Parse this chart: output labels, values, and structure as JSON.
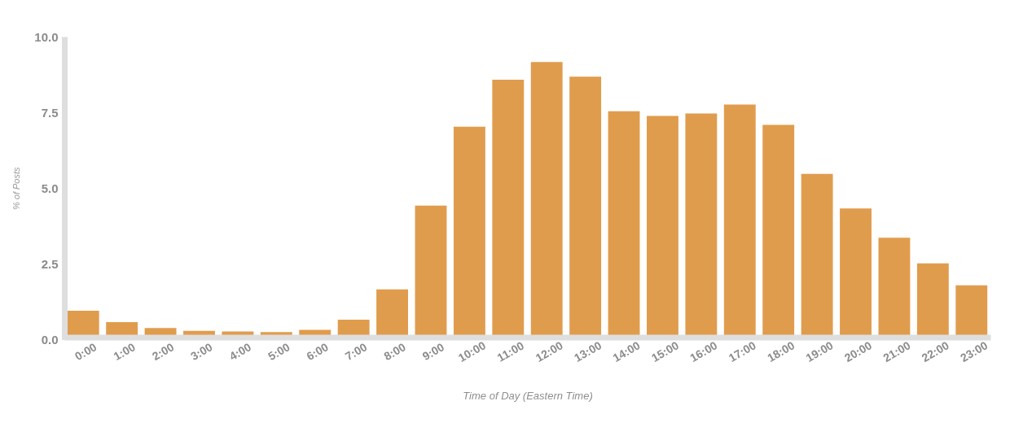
{
  "chart_data": {
    "type": "bar",
    "xlabel": "Time of Day (Eastern Time)",
    "ylabel": "% of Posts",
    "categories": [
      "0:00",
      "1:00",
      "2:00",
      "3:00",
      "4:00",
      "5:00",
      "6:00",
      "7:00",
      "8:00",
      "9:00",
      "10:00",
      "11:00",
      "12:00",
      "13:00",
      "14:00",
      "15:00",
      "16:00",
      "17:00",
      "18:00",
      "19:00",
      "20:00",
      "21:00",
      "22:00",
      "23:00"
    ],
    "values": [
      0.95,
      0.58,
      0.38,
      0.29,
      0.27,
      0.25,
      0.32,
      0.66,
      1.66,
      4.42,
      7.03,
      8.58,
      9.16,
      8.68,
      7.54,
      7.38,
      7.46,
      7.76,
      7.09,
      5.47,
      4.33,
      3.36,
      2.52,
      1.79
    ],
    "color": "#e09c4d",
    "ylim": [
      0,
      10
    ],
    "yticks": [
      {
        "value": 0,
        "label": "0.0"
      },
      2.5,
      {
        "value": 5,
        "label": "5.0"
      },
      7.5,
      {
        "value": 10,
        "label": "10.0"
      }
    ]
  }
}
